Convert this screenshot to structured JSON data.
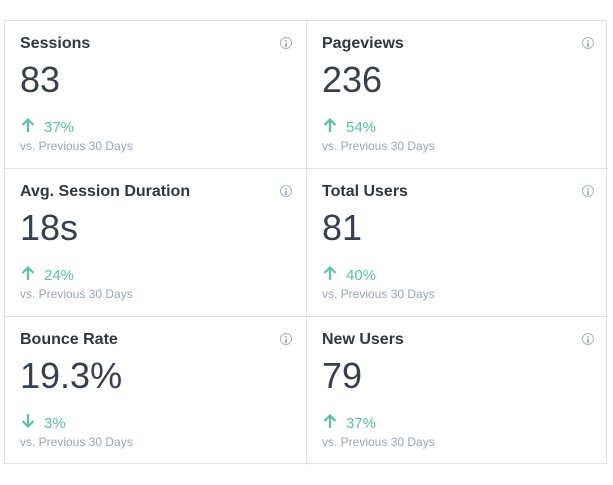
{
  "colors": {
    "positive": "#5cc0a5",
    "label": "#32373c",
    "value": "#393f4c",
    "muted": "#9aa4ae",
    "border": "#e2e2e2"
  },
  "metrics": [
    {
      "label": "Sessions",
      "value": "83",
      "change": "37%",
      "direction": "up",
      "compare": "vs. Previous 30 Days",
      "icon": "info-icon"
    },
    {
      "label": "Pageviews",
      "value": "236",
      "change": "54%",
      "direction": "up",
      "compare": "vs. Previous 30 Days",
      "icon": "info-icon"
    },
    {
      "label": "Avg. Session Duration",
      "value": "18s",
      "change": "24%",
      "direction": "up",
      "compare": "vs. Previous 30 Days",
      "icon": "info-icon"
    },
    {
      "label": "Total Users",
      "value": "81",
      "change": "40%",
      "direction": "up",
      "compare": "vs. Previous 30 Days",
      "icon": "info-icon"
    },
    {
      "label": "Bounce Rate",
      "value": "19.3%",
      "change": "3%",
      "direction": "down",
      "compare": "vs. Previous 30 Days",
      "icon": "info-icon"
    },
    {
      "label": "New Users",
      "value": "79",
      "change": "37%",
      "direction": "up",
      "compare": "vs. Previous 30 Days",
      "icon": "info-icon"
    }
  ]
}
